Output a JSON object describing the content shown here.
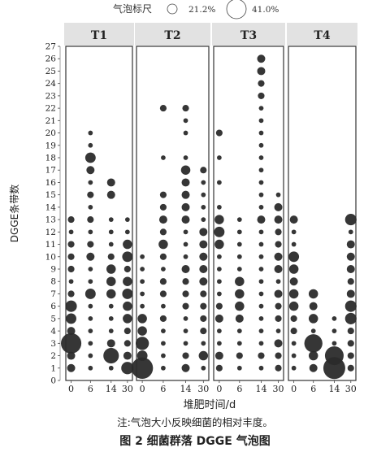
{
  "chart_data": {
    "type": "bubble",
    "legend": {
      "title": "气泡标尺",
      "entries": [
        {
          "label": "21.2%",
          "value": 21.2
        },
        {
          "label": "41.0%",
          "value": 41.0
        }
      ]
    },
    "ylabel": "DGGE条带数",
    "xlabel": "堆肥时间/d",
    "y_ticks": [
      0,
      1,
      2,
      3,
      4,
      5,
      6,
      7,
      8,
      9,
      10,
      11,
      12,
      13,
      14,
      15,
      16,
      17,
      18,
      19,
      20,
      21,
      22,
      23,
      24,
      25,
      26,
      27
    ],
    "ylim": [
      0,
      27
    ],
    "x_ticks": [
      "0",
      "6",
      "14",
      "30"
    ],
    "x_values": [
      0,
      6,
      14,
      30
    ],
    "panels": [
      {
        "name": "T1",
        "points": [
          [
            0,
            3,
            19
          ],
          [
            0,
            6,
            6
          ],
          [
            0,
            5,
            5
          ],
          [
            0,
            4,
            3
          ],
          [
            0,
            2,
            3
          ],
          [
            0,
            1,
            3
          ],
          [
            0,
            7,
            2
          ],
          [
            0,
            9,
            2
          ],
          [
            0,
            10,
            2
          ],
          [
            0,
            11,
            2
          ],
          [
            0,
            13,
            2
          ],
          [
            0,
            8,
            1
          ],
          [
            0,
            12,
            1
          ],
          [
            6,
            18,
            5
          ],
          [
            6,
            17,
            3
          ],
          [
            6,
            7,
            5
          ],
          [
            6,
            10,
            3
          ],
          [
            6,
            11,
            2
          ],
          [
            6,
            13,
            2
          ],
          [
            6,
            15,
            2
          ],
          [
            6,
            19,
            1
          ],
          [
            6,
            20,
            1
          ],
          [
            6,
            12,
            1
          ],
          [
            6,
            16,
            1
          ],
          [
            6,
            14,
            1
          ],
          [
            6,
            9,
            1
          ],
          [
            6,
            8,
            1
          ],
          [
            6,
            6,
            1
          ],
          [
            6,
            5,
            1
          ],
          [
            6,
            4,
            1
          ],
          [
            6,
            3,
            1
          ],
          [
            6,
            2,
            1
          ],
          [
            6,
            1,
            1
          ],
          [
            14,
            2,
            11
          ],
          [
            14,
            16,
            3
          ],
          [
            14,
            15,
            3
          ],
          [
            14,
            9,
            4
          ],
          [
            14,
            8,
            4
          ],
          [
            14,
            7,
            4
          ],
          [
            14,
            3,
            3
          ],
          [
            14,
            10,
            2
          ],
          [
            14,
            12,
            1
          ],
          [
            14,
            13,
            1
          ],
          [
            14,
            6,
            1
          ],
          [
            14,
            5,
            1
          ],
          [
            14,
            4,
            1
          ],
          [
            14,
            1,
            1
          ],
          [
            14,
            11,
            1
          ],
          [
            30,
            1,
            7
          ],
          [
            30,
            11,
            4
          ],
          [
            30,
            10,
            5
          ],
          [
            30,
            8,
            4
          ],
          [
            30,
            7,
            5
          ],
          [
            30,
            6,
            4
          ],
          [
            30,
            5,
            4
          ],
          [
            30,
            2,
            3
          ],
          [
            30,
            3,
            2
          ],
          [
            30,
            4,
            2
          ],
          [
            30,
            9,
            2
          ],
          [
            30,
            12,
            1
          ],
          [
            30,
            13,
            1
          ]
        ]
      },
      {
        "name": "T2",
        "points": [
          [
            0,
            1,
            21
          ],
          [
            0,
            3,
            8
          ],
          [
            0,
            2,
            5
          ],
          [
            0,
            4,
            4
          ],
          [
            0,
            5,
            4
          ],
          [
            0,
            6,
            1
          ],
          [
            0,
            7,
            1
          ],
          [
            0,
            8,
            1
          ],
          [
            0,
            9,
            1
          ],
          [
            0,
            10,
            1
          ],
          [
            6,
            22,
            2
          ],
          [
            6,
            15,
            2
          ],
          [
            6,
            14,
            2
          ],
          [
            6,
            13,
            3
          ],
          [
            6,
            12,
            2
          ],
          [
            6,
            11,
            4
          ],
          [
            6,
            10,
            2
          ],
          [
            6,
            7,
            2
          ],
          [
            6,
            8,
            2
          ],
          [
            6,
            5,
            2
          ],
          [
            6,
            3,
            1
          ],
          [
            6,
            2,
            1
          ],
          [
            6,
            1,
            1
          ],
          [
            6,
            4,
            1
          ],
          [
            6,
            6,
            1
          ],
          [
            6,
            9,
            1
          ],
          [
            6,
            18,
            1
          ],
          [
            14,
            22,
            2
          ],
          [
            14,
            21,
            1
          ],
          [
            14,
            17,
            4
          ],
          [
            14,
            16,
            3
          ],
          [
            14,
            15,
            3
          ],
          [
            14,
            14,
            3
          ],
          [
            14,
            13,
            3
          ],
          [
            14,
            9,
            3
          ],
          [
            14,
            8,
            2
          ],
          [
            14,
            7,
            2
          ],
          [
            14,
            6,
            2
          ],
          [
            14,
            5,
            1
          ],
          [
            14,
            4,
            1
          ],
          [
            14,
            3,
            1
          ],
          [
            14,
            2,
            2
          ],
          [
            14,
            1,
            3
          ],
          [
            14,
            12,
            1
          ],
          [
            14,
            11,
            1
          ],
          [
            14,
            10,
            1
          ],
          [
            14,
            18,
            1
          ],
          [
            14,
            20,
            1
          ],
          [
            30,
            17,
            2
          ],
          [
            30,
            12,
            3
          ],
          [
            30,
            11,
            3
          ],
          [
            30,
            10,
            3
          ],
          [
            30,
            9,
            3
          ],
          [
            30,
            8,
            3
          ],
          [
            30,
            7,
            2
          ],
          [
            30,
            6,
            2
          ],
          [
            30,
            5,
            2
          ],
          [
            30,
            4,
            2
          ],
          [
            30,
            2,
            4
          ],
          [
            30,
            3,
            1
          ],
          [
            30,
            1,
            1
          ],
          [
            30,
            13,
            1
          ],
          [
            30,
            14,
            1
          ],
          [
            30,
            15,
            1
          ],
          [
            30,
            16,
            1
          ]
        ]
      },
      {
        "name": "T3",
        "points": [
          [
            0,
            13,
            4
          ],
          [
            0,
            12,
            5
          ],
          [
            0,
            11,
            4
          ],
          [
            0,
            20,
            2
          ],
          [
            0,
            6,
            2
          ],
          [
            0,
            5,
            3
          ],
          [
            0,
            2,
            3
          ],
          [
            0,
            1,
            2
          ],
          [
            0,
            4,
            1
          ],
          [
            0,
            3,
            1
          ],
          [
            0,
            7,
            1
          ],
          [
            0,
            8,
            1
          ],
          [
            0,
            9,
            1
          ],
          [
            0,
            10,
            1
          ],
          [
            0,
            14,
            1
          ],
          [
            0,
            16,
            1
          ],
          [
            0,
            18,
            1
          ],
          [
            6,
            8,
            4
          ],
          [
            6,
            7,
            4
          ],
          [
            6,
            6,
            4
          ],
          [
            6,
            5,
            3
          ],
          [
            6,
            2,
            2
          ],
          [
            6,
            11,
            1
          ],
          [
            6,
            1,
            1
          ],
          [
            6,
            3,
            1
          ],
          [
            6,
            4,
            1
          ],
          [
            6,
            9,
            1
          ],
          [
            6,
            10,
            1
          ],
          [
            6,
            12,
            1
          ],
          [
            6,
            13,
            1
          ],
          [
            14,
            26,
            3
          ],
          [
            14,
            25,
            3
          ],
          [
            14,
            24,
            2
          ],
          [
            14,
            23,
            2
          ],
          [
            14,
            13,
            3
          ],
          [
            14,
            2,
            2
          ],
          [
            14,
            1,
            1
          ],
          [
            14,
            3,
            1
          ],
          [
            14,
            4,
            1
          ],
          [
            14,
            5,
            1
          ],
          [
            14,
            6,
            1
          ],
          [
            14,
            7,
            1
          ],
          [
            14,
            8,
            1
          ],
          [
            14,
            9,
            1
          ],
          [
            14,
            10,
            1
          ],
          [
            14,
            11,
            1
          ],
          [
            14,
            12,
            1
          ],
          [
            14,
            14,
            1
          ],
          [
            14,
            15,
            1
          ],
          [
            14,
            16,
            1
          ],
          [
            14,
            17,
            1
          ],
          [
            14,
            18,
            1
          ],
          [
            14,
            19,
            1
          ],
          [
            14,
            20,
            1
          ],
          [
            14,
            21,
            1
          ],
          [
            14,
            22,
            1
          ],
          [
            30,
            14,
            3
          ],
          [
            30,
            13,
            3
          ],
          [
            30,
            12,
            2
          ],
          [
            30,
            11,
            2
          ],
          [
            30,
            10,
            3
          ],
          [
            30,
            9,
            3
          ],
          [
            30,
            7,
            3
          ],
          [
            30,
            6,
            2
          ],
          [
            30,
            5,
            2
          ],
          [
            30,
            3,
            3
          ],
          [
            30,
            2,
            2
          ],
          [
            30,
            1,
            2
          ],
          [
            30,
            4,
            1
          ],
          [
            30,
            8,
            1
          ],
          [
            30,
            15,
            1
          ]
        ]
      },
      {
        "name": "T4",
        "points": [
          [
            0,
            13,
            3
          ],
          [
            0,
            10,
            5
          ],
          [
            0,
            9,
            4
          ],
          [
            0,
            8,
            3
          ],
          [
            0,
            7,
            4
          ],
          [
            0,
            6,
            4
          ],
          [
            0,
            5,
            2
          ],
          [
            0,
            4,
            2
          ],
          [
            0,
            3,
            1
          ],
          [
            0,
            2,
            1
          ],
          [
            0,
            1,
            1
          ],
          [
            0,
            11,
            1
          ],
          [
            0,
            12,
            1
          ],
          [
            6,
            3,
            15
          ],
          [
            6,
            7,
            4
          ],
          [
            6,
            6,
            3
          ],
          [
            6,
            5,
            4
          ],
          [
            6,
            2,
            4
          ],
          [
            6,
            1,
            3
          ],
          [
            6,
            4,
            1
          ],
          [
            14,
            1,
            22
          ],
          [
            14,
            2,
            16
          ],
          [
            14,
            3,
            1
          ],
          [
            14,
            4,
            1
          ],
          [
            14,
            5,
            1
          ],
          [
            30,
            13,
            6
          ],
          [
            30,
            11,
            3
          ],
          [
            30,
            6,
            6
          ],
          [
            30,
            5,
            6
          ],
          [
            30,
            10,
            3
          ],
          [
            30,
            9,
            3
          ],
          [
            30,
            8,
            2
          ],
          [
            30,
            7,
            3
          ],
          [
            30,
            4,
            2
          ],
          [
            30,
            3,
            2
          ],
          [
            30,
            2,
            2
          ],
          [
            30,
            1,
            2
          ],
          [
            30,
            12,
            1
          ]
        ]
      }
    ]
  },
  "captions": {
    "note": "注:气泡大小反映细菌的相对丰度。",
    "title": "图 2 细菌群落 DGGE 气泡图"
  }
}
